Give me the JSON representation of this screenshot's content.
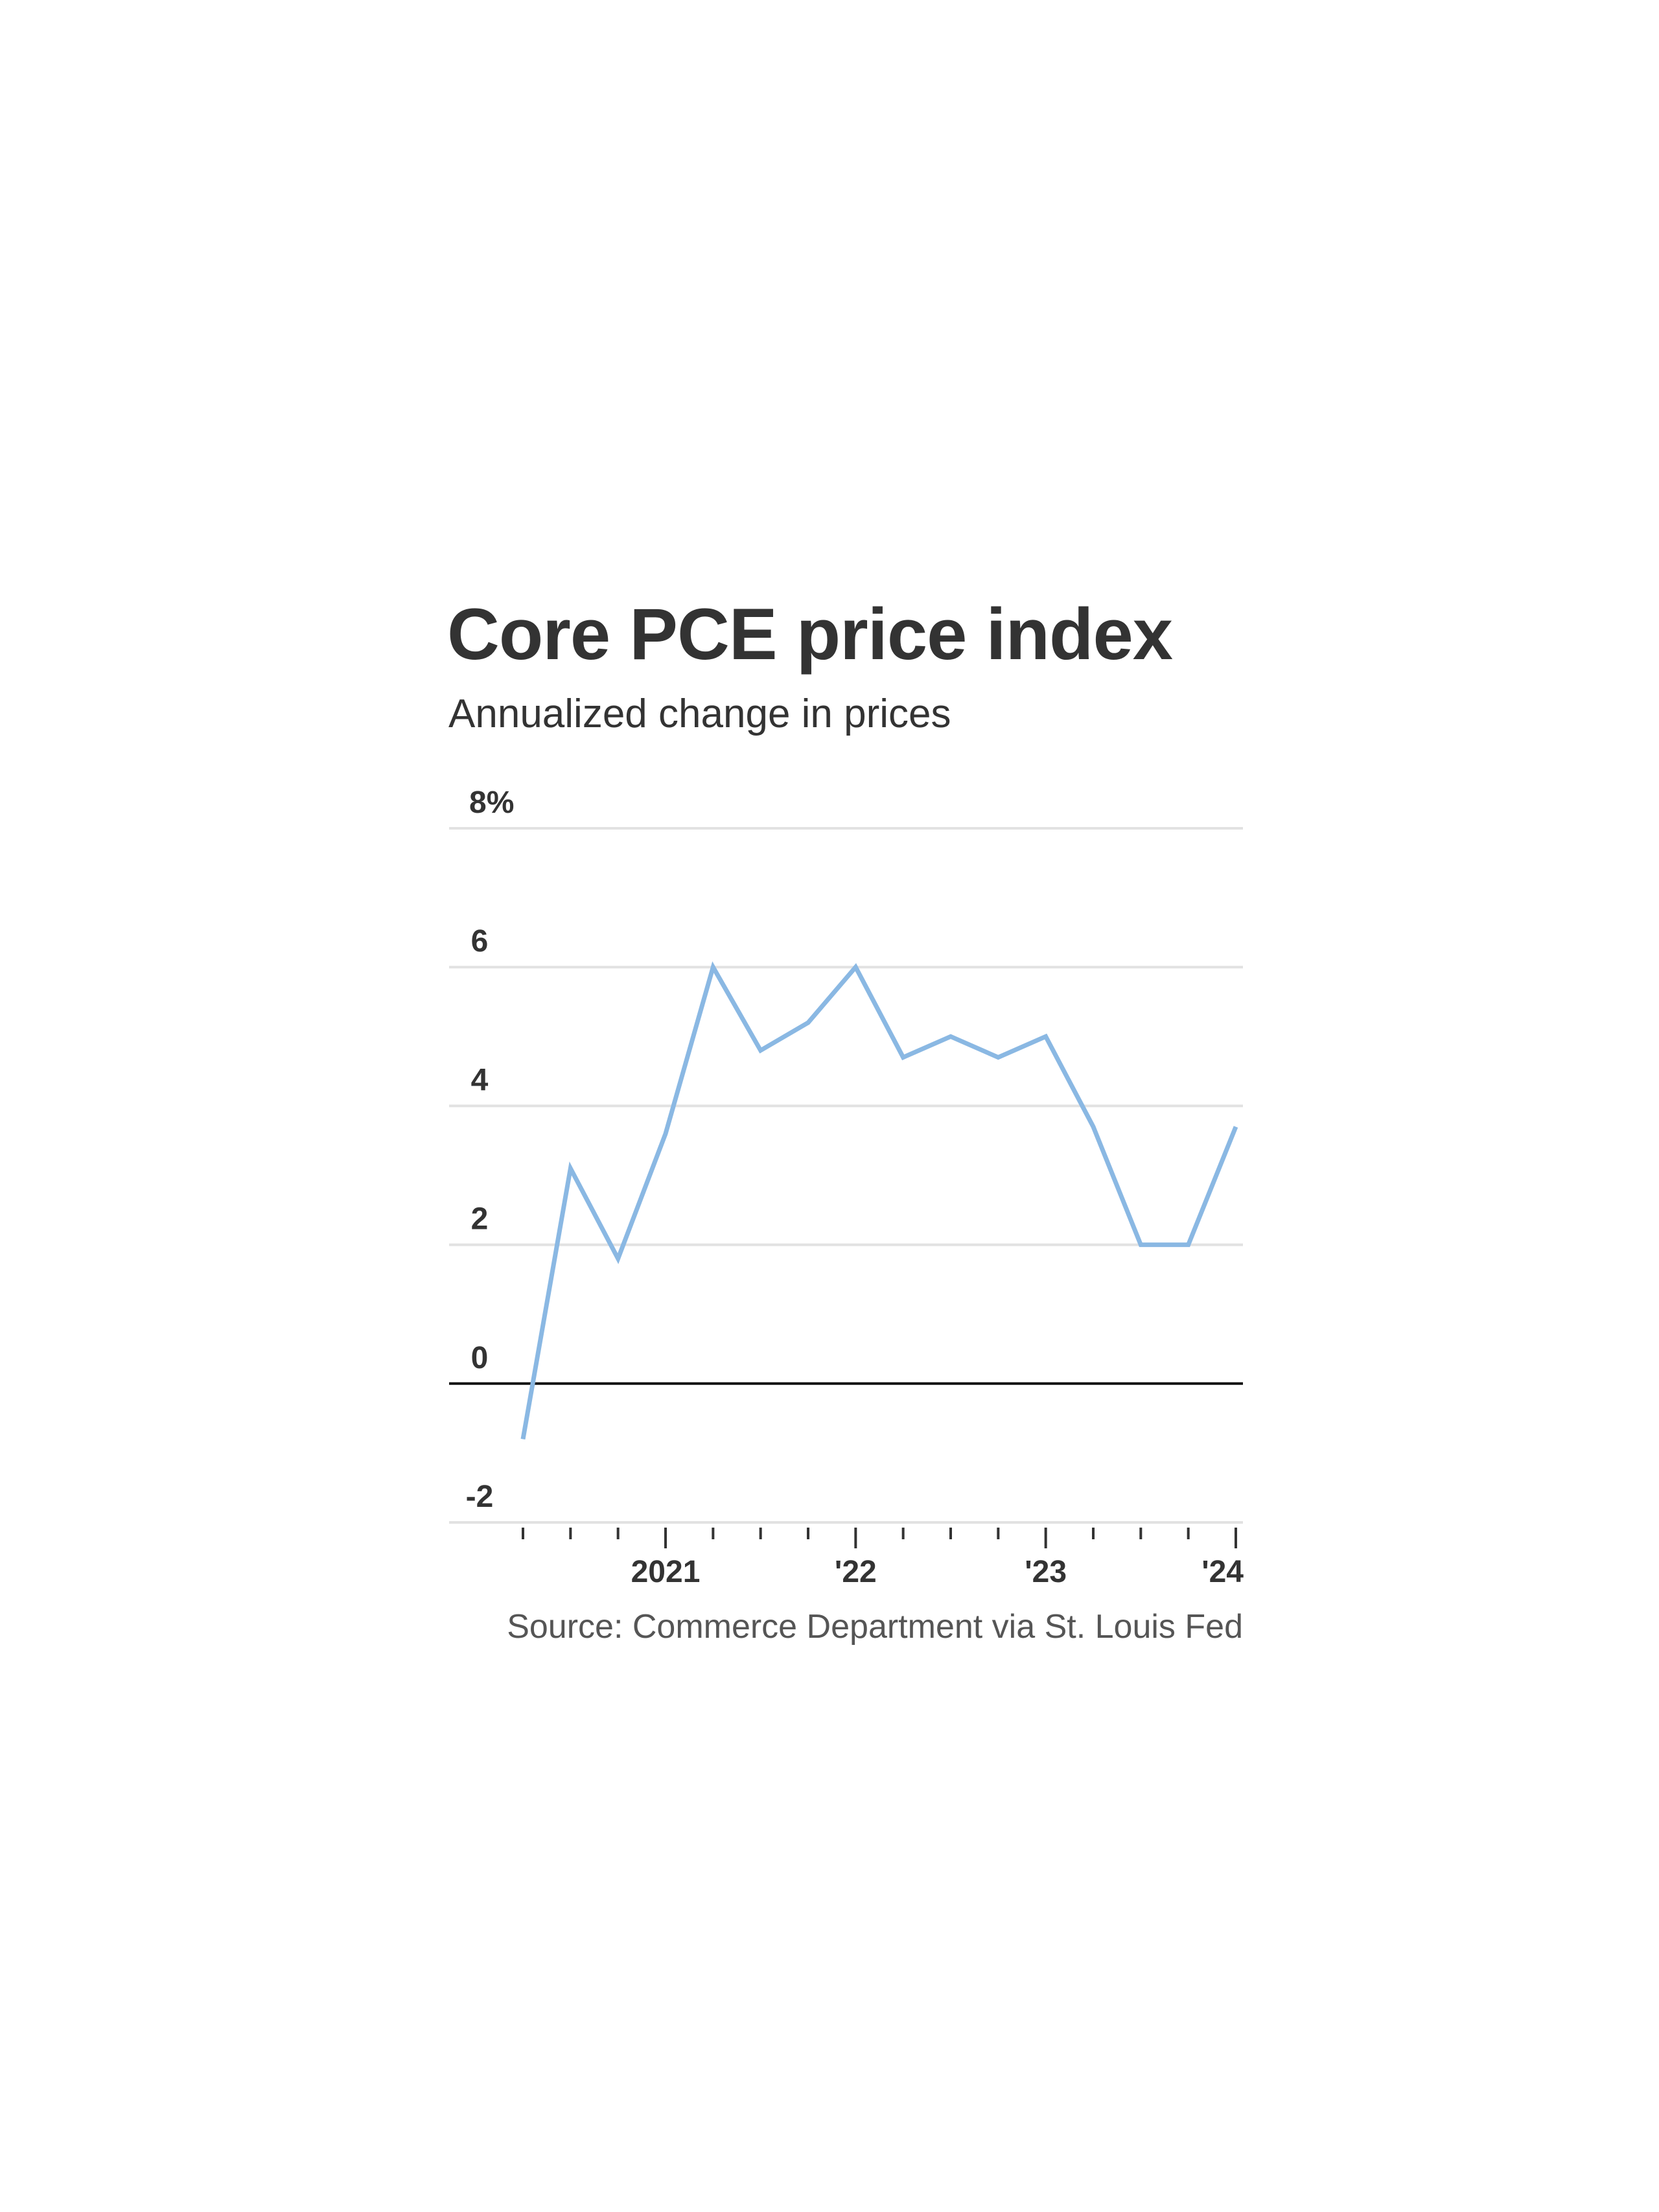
{
  "chart_data": {
    "type": "line",
    "title": "Core PCE price index",
    "subtitle": "Annualized change in prices",
    "source": "Source: Commerce Department via St. Louis Fed",
    "xlabel": "",
    "ylabel": "",
    "ylim": [
      -2,
      8
    ],
    "yticks": [
      -2,
      0,
      2,
      4,
      6,
      8
    ],
    "ytick_labels": [
      "-2",
      "0",
      "2",
      "4",
      "6",
      "8%"
    ],
    "x": [
      "2020 Q2",
      "2020 Q3",
      "2020 Q4",
      "2021 Q1",
      "2021 Q2",
      "2021 Q3",
      "2021 Q4",
      "2022 Q1",
      "2022 Q2",
      "2022 Q3",
      "2022 Q4",
      "2023 Q1",
      "2023 Q2",
      "2023 Q3",
      "2023 Q4",
      "2024 Q1"
    ],
    "xtick_labels": [
      {
        "index": 3,
        "label": "2021"
      },
      {
        "index": 7,
        "label": "'22"
      },
      {
        "index": 11,
        "label": "'23"
      },
      {
        "index": 15,
        "label": "'24"
      }
    ],
    "series": [
      {
        "name": "Core PCE",
        "color": "#8ab8e3",
        "values": [
          -0.8,
          3.1,
          1.8,
          3.6,
          6.0,
          4.8,
          5.2,
          6.0,
          4.7,
          5.0,
          4.7,
          5.0,
          3.7,
          2.0,
          2.0,
          3.7
        ]
      }
    ],
    "grid": true,
    "legend": "none"
  }
}
